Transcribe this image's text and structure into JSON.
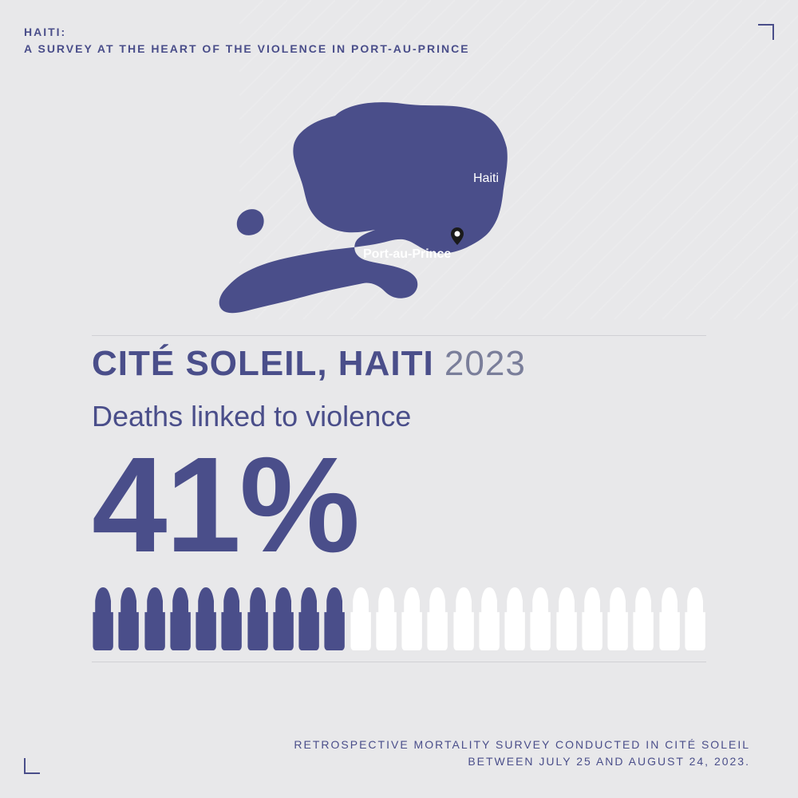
{
  "header": {
    "line1": "HAITI:",
    "line2": "A SURVEY AT THE HEART OF THE VIOLENCE IN PORT-AU-PRINCE"
  },
  "map": {
    "country_label": "Haiti",
    "city_label": "Port-au-Prince",
    "fill_color": "#4a4e8a",
    "label_color": "#ffffff"
  },
  "main": {
    "location": "CITÉ SOLEIL, HAITI",
    "year": "2023",
    "subtitle": "Deaths linked to violence",
    "stat_value": "41%",
    "stat_color": "#4a4e8a"
  },
  "pictogram": {
    "type": "icon-array",
    "icon": "bullet-cartridge",
    "total": 24,
    "filled": 10,
    "filled_color": "#4a4e8a",
    "empty_color": "#ffffff",
    "represents_percent": 41
  },
  "footer": {
    "line1": "RETROSPECTIVE MORTALITY SURVEY CONDUCTED IN CITÉ SOLEIL",
    "line2": "BETWEEN JULY 25 AND AUGUST 24, 2023."
  },
  "colors": {
    "background": "#e8e8ea",
    "primary": "#4a4e8a",
    "muted": "#7a7e9a",
    "divider": "#d0d0d4",
    "white": "#ffffff"
  }
}
